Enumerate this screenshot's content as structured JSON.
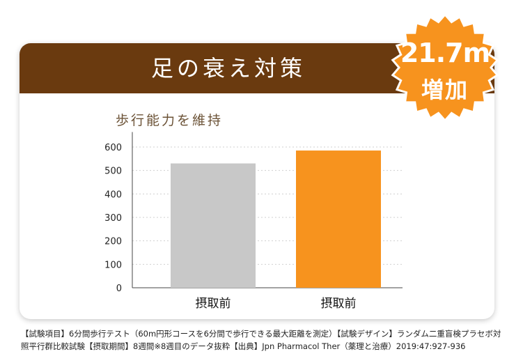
{
  "header": {
    "title": "足の衰え対策"
  },
  "badge": {
    "value": "21.7m",
    "label": "増加"
  },
  "chart_data": {
    "type": "bar",
    "title": "歩行能力を維持",
    "categories": [
      "摂取前",
      "摂取前"
    ],
    "values": [
      530,
      585
    ],
    "bar_colors": [
      "#c8c8c8",
      "#f7931e"
    ],
    "yticks": [
      0,
      100,
      200,
      300,
      400,
      500,
      600
    ],
    "ylim": [
      0,
      640
    ],
    "grid": true,
    "xlabel": "",
    "ylabel": ""
  },
  "footnote": "【試験項目】6分間歩行テスト（60m円形コースを6分間で歩行できる最大距離を測定）【試験デザイン】ランダム二重盲検プラセボ対照平行群比較試験【摂取期間】8週間※8週目のデータ抜粋【出典】Jpn Pharmacol Ther（薬理と治療）2019:47:927-936",
  "colors": {
    "header_bg": "#6a3a0f",
    "badge_bg": "#f7931e",
    "subtitle": "#6b5236"
  }
}
